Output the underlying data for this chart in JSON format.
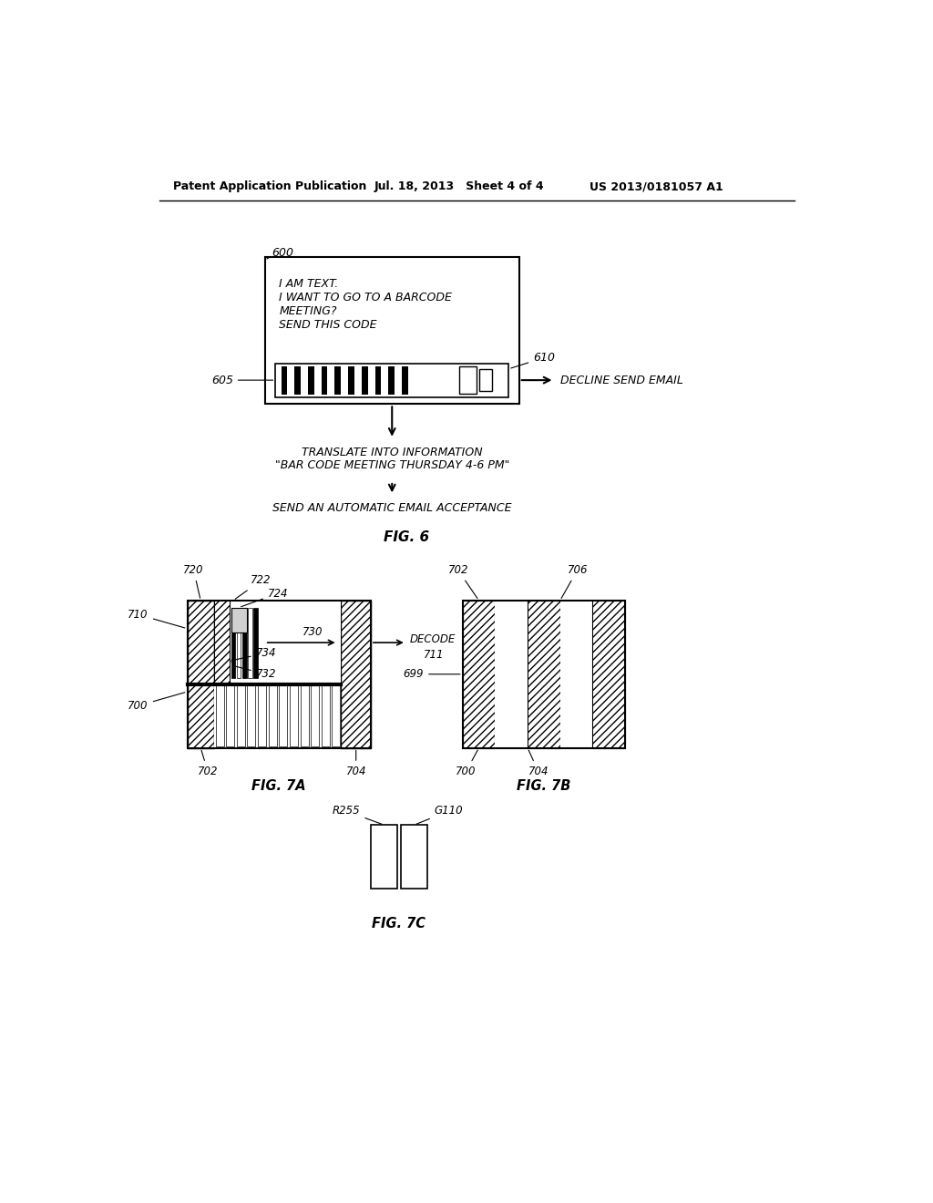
{
  "bg_color": "#ffffff",
  "header_left": "Patent Application Publication",
  "header_mid": "Jul. 18, 2013   Sheet 4 of 4",
  "header_right": "US 2013/0181057 A1",
  "fig6_box_text": "I AM TEXT.\nI WANT TO GO TO A BARCODE\nMEETING?\nSEND THIS CODE",
  "fig6_decline": "DECLINE SEND EMAIL",
  "fig6_translate": "TRANSLATE INTO INFORMATION\n\"BAR CODE MEETING THURSDAY 4-6 PM\"",
  "fig6_send": "SEND AN AUTOMATIC EMAIL ACCEPTANCE",
  "fig6_label": "FIG. 6",
  "fig7a_label": "FIG. 7A",
  "fig7b_label": "FIG. 7B",
  "fig7c_label": "FIG. 7C"
}
